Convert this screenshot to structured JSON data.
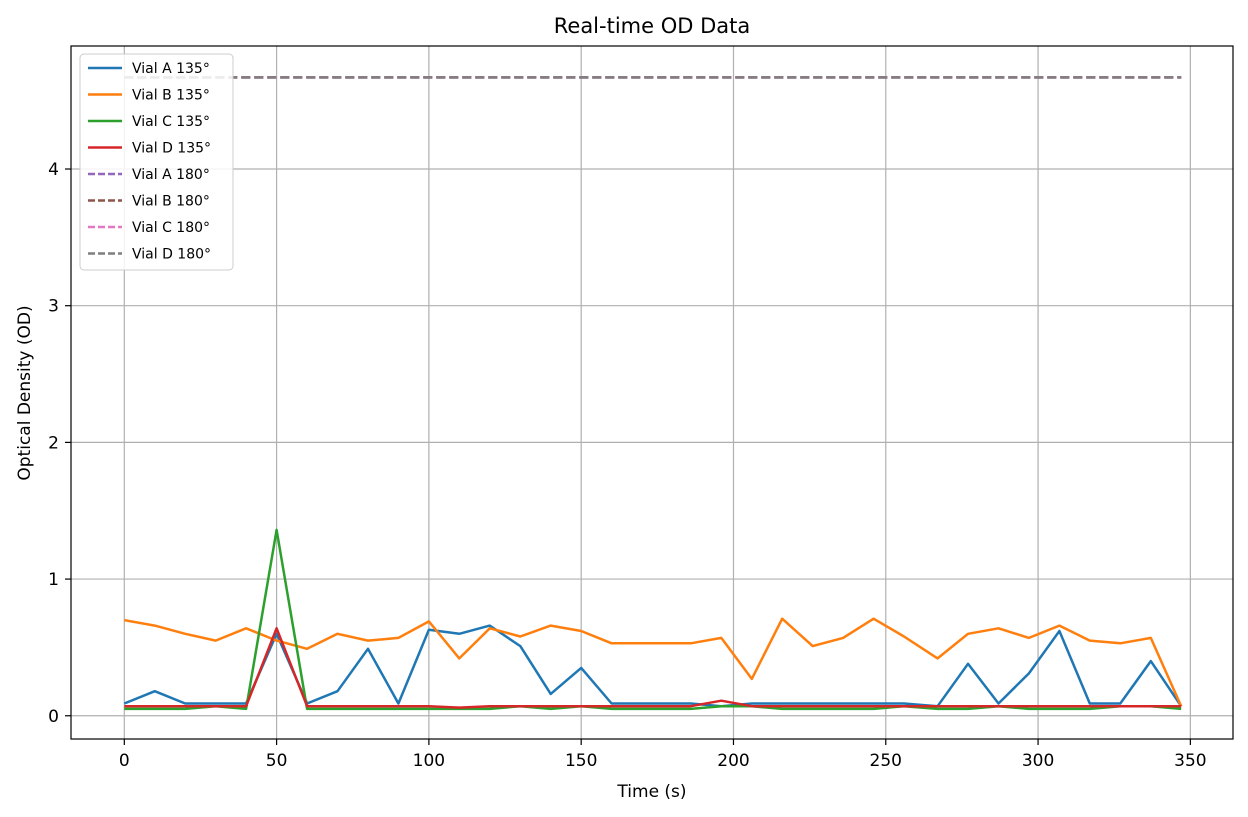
{
  "chart_data": {
    "type": "line",
    "title": "Real-time OD Data",
    "xlabel": "Time (s)",
    "ylabel": "Optical Density (OD)",
    "xlim": [
      -17.5,
      364
    ],
    "ylim": [
      -0.17,
      4.9
    ],
    "xticks": [
      0,
      50,
      100,
      150,
      200,
      250,
      300,
      350
    ],
    "yticks": [
      0,
      1,
      2,
      3,
      4
    ],
    "grid": true,
    "legend_position": "upper-left",
    "x": [
      0,
      10,
      20,
      30,
      40,
      50,
      60,
      70,
      80,
      90,
      100,
      110,
      120,
      130,
      140,
      150,
      160,
      170,
      180,
      186,
      196,
      206,
      216,
      226,
      236,
      246,
      256,
      267,
      277,
      287,
      297,
      307,
      317,
      327,
      337,
      347
    ],
    "series": [
      {
        "name": "Vial A 135°",
        "color": "#1f77b4",
        "dash": "solid",
        "values": [
          0.09,
          0.18,
          0.09,
          0.09,
          0.09,
          0.6,
          0.09,
          0.18,
          0.49,
          0.09,
          0.63,
          0.6,
          0.66,
          0.51,
          0.16,
          0.35,
          0.09,
          0.09,
          0.09,
          0.09,
          0.07,
          0.09,
          0.09,
          0.09,
          0.09,
          0.09,
          0.09,
          0.07,
          0.38,
          0.09,
          0.31,
          0.62,
          0.09,
          0.09,
          0.4,
          0.07
        ]
      },
      {
        "name": "Vial B 135°",
        "color": "#ff7f0e",
        "dash": "solid",
        "values": [
          0.7,
          0.66,
          0.6,
          0.55,
          0.64,
          0.55,
          0.49,
          0.6,
          0.55,
          0.57,
          0.69,
          0.42,
          0.64,
          0.58,
          0.66,
          0.62,
          0.53,
          0.53,
          0.53,
          0.53,
          0.57,
          0.27,
          0.71,
          0.51,
          0.57,
          0.71,
          0.58,
          0.42,
          0.6,
          0.64,
          0.57,
          0.66,
          0.55,
          0.53,
          0.57,
          0.07
        ]
      },
      {
        "name": "Vial C 135°",
        "color": "#2ca02c",
        "dash": "solid",
        "values": [
          0.05,
          0.05,
          0.05,
          0.07,
          0.05,
          1.36,
          0.05,
          0.05,
          0.05,
          0.05,
          0.05,
          0.05,
          0.05,
          0.07,
          0.05,
          0.07,
          0.05,
          0.05,
          0.05,
          0.05,
          0.07,
          0.07,
          0.05,
          0.05,
          0.05,
          0.05,
          0.07,
          0.05,
          0.05,
          0.07,
          0.05,
          0.05,
          0.05,
          0.07,
          0.07,
          0.05
        ]
      },
      {
        "name": "Vial D 135°",
        "color": "#d62728",
        "dash": "solid",
        "values": [
          0.07,
          0.07,
          0.07,
          0.07,
          0.07,
          0.64,
          0.07,
          0.07,
          0.07,
          0.07,
          0.07,
          0.06,
          0.07,
          0.07,
          0.07,
          0.07,
          0.07,
          0.07,
          0.07,
          0.07,
          0.11,
          0.07,
          0.07,
          0.07,
          0.07,
          0.07,
          0.07,
          0.07,
          0.07,
          0.07,
          0.07,
          0.07,
          0.07,
          0.07,
          0.07,
          0.07
        ]
      },
      {
        "name": "Vial A 180°",
        "color": "#9467bd",
        "dash": "dashed",
        "values": [
          4.67,
          4.67,
          4.67,
          4.67,
          4.67,
          4.67,
          4.67,
          4.67,
          4.67,
          4.67,
          4.67,
          4.67,
          4.67,
          4.67,
          4.67,
          4.67,
          4.67,
          4.67,
          4.67,
          4.67,
          4.67,
          4.67,
          4.67,
          4.67,
          4.67,
          4.67,
          4.67,
          4.67,
          4.67,
          4.67,
          4.67,
          4.67,
          4.67,
          4.67,
          4.67,
          4.67
        ]
      },
      {
        "name": "Vial B 180°",
        "color": "#8c564b",
        "dash": "dashed",
        "values": [
          4.67,
          4.67,
          4.67,
          4.67,
          4.67,
          4.67,
          4.67,
          4.67,
          4.67,
          4.67,
          4.67,
          4.67,
          4.67,
          4.67,
          4.67,
          4.67,
          4.67,
          4.67,
          4.67,
          4.67,
          4.67,
          4.67,
          4.67,
          4.67,
          4.67,
          4.67,
          4.67,
          4.67,
          4.67,
          4.67,
          4.67,
          4.67,
          4.67,
          4.67,
          4.67,
          4.67
        ]
      },
      {
        "name": "Vial C 180°",
        "color": "#e377c2",
        "dash": "dashed",
        "values": [
          4.67,
          4.67,
          4.67,
          4.67,
          4.67,
          4.67,
          4.67,
          4.67,
          4.67,
          4.67,
          4.67,
          4.67,
          4.67,
          4.67,
          4.67,
          4.67,
          4.67,
          4.67,
          4.67,
          4.67,
          4.67,
          4.67,
          4.67,
          4.67,
          4.67,
          4.67,
          4.67,
          4.67,
          4.67,
          4.67,
          4.67,
          4.67,
          4.67,
          4.67,
          4.67,
          4.67
        ]
      },
      {
        "name": "Vial D 180°",
        "color": "#7f7f7f",
        "dash": "dashed",
        "values": [
          4.67,
          4.67,
          4.67,
          4.67,
          4.67,
          4.67,
          4.67,
          4.67,
          4.67,
          4.67,
          4.67,
          4.67,
          4.67,
          4.67,
          4.67,
          4.67,
          4.67,
          4.67,
          4.67,
          4.67,
          4.67,
          4.67,
          4.67,
          4.67,
          4.67,
          4.67,
          4.67,
          4.67,
          4.67,
          4.67,
          4.67,
          4.67,
          4.67,
          4.67,
          4.67,
          4.67
        ]
      }
    ]
  }
}
